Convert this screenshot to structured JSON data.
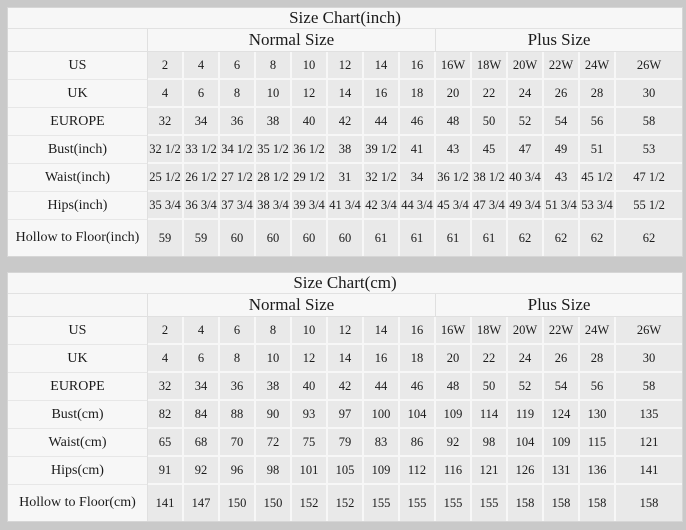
{
  "colors": {
    "page_background": "#c9c9c9",
    "table_background": "#f7f7f7",
    "data_cell_background": "#e9e9e9",
    "grid_line": "#e0e0e0",
    "text": "#1b1b1b"
  },
  "chart_data": [
    {
      "type": "table",
      "title": "Size Chart(inch)",
      "column_groups": [
        {
          "label": "",
          "span": 1
        },
        {
          "label": "Normal Size",
          "span": 8
        },
        {
          "label": "Plus Size",
          "span": 6
        }
      ],
      "rows": [
        {
          "label": "US",
          "values": [
            "2",
            "4",
            "6",
            "8",
            "10",
            "12",
            "14",
            "16",
            "16W",
            "18W",
            "20W",
            "22W",
            "24W",
            "26W"
          ]
        },
        {
          "label": "UK",
          "values": [
            "4",
            "6",
            "8",
            "10",
            "12",
            "14",
            "16",
            "18",
            "20",
            "22",
            "24",
            "26",
            "28",
            "30"
          ]
        },
        {
          "label": "EUROPE",
          "values": [
            "32",
            "34",
            "36",
            "38",
            "40",
            "42",
            "44",
            "46",
            "48",
            "50",
            "52",
            "54",
            "56",
            "58"
          ]
        },
        {
          "label": "Bust(inch)",
          "values": [
            "32 1/2",
            "33 1/2",
            "34 1/2",
            "35 1/2",
            "36 1/2",
            "38",
            "39 1/2",
            "41",
            "43",
            "45",
            "47",
            "49",
            "51",
            "53"
          ]
        },
        {
          "label": "Waist(inch)",
          "values": [
            "25 1/2",
            "26 1/2",
            "27 1/2",
            "28 1/2",
            "29 1/2",
            "31",
            "32 1/2",
            "34",
            "36 1/2",
            "38 1/2",
            "40 3/4",
            "43",
            "45 1/2",
            "47 1/2"
          ]
        },
        {
          "label": "Hips(inch)",
          "values": [
            "35 3/4",
            "36 3/4",
            "37 3/4",
            "38 3/4",
            "39 3/4",
            "41 3/4",
            "42 3/4",
            "44 3/4",
            "45 3/4",
            "47 3/4",
            "49 3/4",
            "51 3/4",
            "53 3/4",
            "55 1/2"
          ]
        },
        {
          "label": "Hollow to Floor(inch)",
          "values": [
            "59",
            "59",
            "60",
            "60",
            "60",
            "60",
            "61",
            "61",
            "61",
            "61",
            "62",
            "62",
            "62",
            "62"
          ]
        }
      ]
    },
    {
      "type": "table",
      "title": "Size Chart(cm)",
      "column_groups": [
        {
          "label": "",
          "span": 1
        },
        {
          "label": "Normal Size",
          "span": 8
        },
        {
          "label": "Plus Size",
          "span": 6
        }
      ],
      "rows": [
        {
          "label": "US",
          "values": [
            "2",
            "4",
            "6",
            "8",
            "10",
            "12",
            "14",
            "16",
            "16W",
            "18W",
            "20W",
            "22W",
            "24W",
            "26W"
          ]
        },
        {
          "label": "UK",
          "values": [
            "4",
            "6",
            "8",
            "10",
            "12",
            "14",
            "16",
            "18",
            "20",
            "22",
            "24",
            "26",
            "28",
            "30"
          ]
        },
        {
          "label": "EUROPE",
          "values": [
            "32",
            "34",
            "36",
            "38",
            "40",
            "42",
            "44",
            "46",
            "48",
            "50",
            "52",
            "54",
            "56",
            "58"
          ]
        },
        {
          "label": "Bust(cm)",
          "values": [
            "82",
            "84",
            "88",
            "90",
            "93",
            "97",
            "100",
            "104",
            "109",
            "114",
            "119",
            "124",
            "130",
            "135"
          ]
        },
        {
          "label": "Waist(cm)",
          "values": [
            "65",
            "68",
            "70",
            "72",
            "75",
            "79",
            "83",
            "86",
            "92",
            "98",
            "104",
            "109",
            "115",
            "121"
          ]
        },
        {
          "label": "Hips(cm)",
          "values": [
            "91",
            "92",
            "96",
            "98",
            "101",
            "105",
            "109",
            "112",
            "116",
            "121",
            "126",
            "131",
            "136",
            "141"
          ]
        },
        {
          "label": "Hollow to Floor(cm)",
          "values": [
            "141",
            "147",
            "150",
            "150",
            "152",
            "152",
            "155",
            "155",
            "155",
            "155",
            "158",
            "158",
            "158",
            "158"
          ]
        }
      ]
    }
  ]
}
